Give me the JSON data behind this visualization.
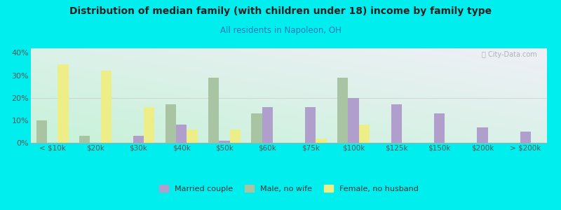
{
  "title": "Distribution of median family (with children under 18) income by family type",
  "subtitle": "All residents in Napoleon, OH",
  "categories": [
    "< $10k",
    "$20k",
    "$30k",
    "$40k",
    "$50k",
    "$60k",
    "$75k",
    "$100k",
    "$125k",
    "$150k",
    "$200k",
    "> $200k"
  ],
  "married_couple": [
    0,
    0,
    3,
    8,
    1,
    16,
    16,
    20,
    17,
    13,
    7,
    5
  ],
  "male_no_wife": [
    10,
    3,
    0,
    17,
    29,
    13,
    0,
    29,
    0,
    0,
    0,
    0
  ],
  "female_no_husband": [
    35,
    32,
    16,
    6,
    6,
    0,
    2,
    8,
    0,
    0,
    0,
    0
  ],
  "married_color": "#b09fcc",
  "male_color": "#a8c4a2",
  "female_color": "#eeee88",
  "bg_color": "#00eeee",
  "title_color": "#222222",
  "subtitle_color": "#2277bb",
  "ylim": [
    0,
    42
  ],
  "yticks": [
    0,
    10,
    20,
    30,
    40
  ],
  "ytick_labels": [
    "0%",
    "10%",
    "20%",
    "30%",
    "40%"
  ],
  "bar_width": 0.25,
  "legend_labels": [
    "Married couple",
    "Male, no wife",
    "Female, no husband"
  ]
}
